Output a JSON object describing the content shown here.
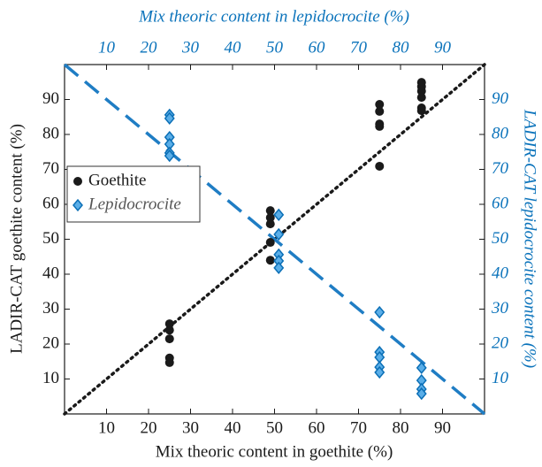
{
  "chart_data": {
    "type": "scatter",
    "xlabel": "Mix theoric content in goethite (%)",
    "ylabel": "LADIR-CAT goethite content (%)",
    "x2label": "Mix theoric content in lepidocrocite (%)",
    "y2label": "LADIR-CAT lepidocrocite content (%)",
    "xlim": [
      0,
      100
    ],
    "ylim": [
      0,
      100
    ],
    "x2lim": [
      0,
      100
    ],
    "y2lim": [
      0,
      100
    ],
    "xticks": [
      10,
      20,
      30,
      40,
      50,
      60,
      70,
      80,
      90
    ],
    "yticks": [
      10,
      20,
      30,
      40,
      50,
      60,
      70,
      80,
      90
    ],
    "x2ticks": [
      10,
      20,
      30,
      40,
      50,
      60,
      70,
      80,
      90
    ],
    "y2ticks": [
      10,
      20,
      30,
      40,
      50,
      60,
      70,
      80,
      90
    ],
    "legend": "left",
    "series": [
      {
        "name": "Goethite",
        "color": "#1a1a1a",
        "marker": "circle",
        "x": [
          25,
          25,
          25,
          25,
          25,
          49,
          49,
          49,
          49,
          49,
          75,
          75,
          75,
          75,
          75,
          85,
          85,
          85,
          85,
          85,
          85
        ],
        "values": [
          25.8,
          24,
          21.5,
          16,
          14.7,
          58.2,
          56.2,
          54.4,
          49.1,
          44,
          88.6,
          86.6,
          83,
          82.3,
          70.9,
          94.9,
          93.7,
          92.4,
          90.6,
          87.6,
          86.8
        ]
      },
      {
        "name": "Lepidocrocite",
        "color": "#5aaee8",
        "marker": "diamond",
        "axis": "y2",
        "x": [
          25,
          25,
          25,
          25,
          25,
          25,
          51,
          51,
          51,
          51,
          51,
          75,
          75,
          75,
          75,
          75,
          85,
          85,
          85,
          85
        ],
        "values": [
          85.6,
          84.6,
          79.2,
          77.2,
          74.7,
          73.9,
          57,
          51.4,
          45.6,
          43.8,
          41.8,
          29.1,
          17.7,
          16.2,
          13.4,
          11.9,
          13.2,
          9.6,
          7.1,
          5.8
        ]
      }
    ],
    "lines": [
      {
        "color": "#1a1a1a",
        "style": "dotted",
        "x": [
          0,
          100
        ],
        "y": [
          0,
          100
        ]
      },
      {
        "color": "#1f7dc4",
        "style": "dashed",
        "x": [
          0,
          100
        ],
        "y": [
          100,
          0
        ]
      }
    ]
  }
}
